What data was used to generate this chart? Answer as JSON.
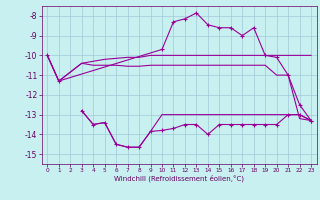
{
  "background_color": "#c8f0f0",
  "grid_color": "#a0c8d8",
  "line_color": "#990099",
  "tick_color": "#660066",
  "xlabel": "Windchill (Refroidissement éolien,°C)",
  "xlim": [
    -0.5,
    23.5
  ],
  "ylim": [
    -15.5,
    -7.5
  ],
  "yticks": [
    -15,
    -14,
    -13,
    -12,
    -11,
    -10,
    -9,
    -8
  ],
  "xticks": [
    0,
    1,
    2,
    3,
    4,
    5,
    6,
    7,
    8,
    9,
    10,
    11,
    12,
    13,
    14,
    15,
    16,
    17,
    18,
    19,
    20,
    21,
    22,
    23
  ],
  "series": [
    {
      "x": [
        0,
        1,
        3,
        4,
        5,
        6,
        7,
        8,
        9,
        10,
        11,
        12,
        13,
        14,
        15,
        16,
        17,
        18,
        19,
        20,
        21,
        22,
        23
      ],
      "y": [
        -10.0,
        -11.3,
        -10.4,
        -10.3,
        -10.2,
        -10.15,
        -10.1,
        -10.1,
        -10.0,
        -10.0,
        -10.0,
        -10.0,
        -10.0,
        -10.0,
        -10.0,
        -10.0,
        -10.0,
        -10.0,
        -10.0,
        -10.0,
        -10.0,
        -10.0,
        -10.0
      ],
      "marker": false
    },
    {
      "x": [
        0,
        1,
        3,
        4,
        5,
        6,
        7,
        8,
        9,
        10,
        11,
        12,
        13,
        14,
        15,
        16,
        17,
        18,
        19,
        20,
        21,
        22,
        23
      ],
      "y": [
        -10.0,
        -11.3,
        -10.4,
        -10.5,
        -10.5,
        -10.5,
        -10.55,
        -10.55,
        -10.5,
        -10.5,
        -10.5,
        -10.5,
        -10.5,
        -10.5,
        -10.5,
        -10.5,
        -10.5,
        -10.5,
        -10.5,
        -11.0,
        -11.0,
        -13.2,
        -13.3
      ],
      "marker": false
    },
    {
      "x": [
        0,
        1,
        10,
        11,
        12,
        13,
        14,
        15,
        16,
        17,
        18,
        19,
        20,
        21,
        22,
        23
      ],
      "y": [
        -10.0,
        -11.3,
        -9.7,
        -8.3,
        -8.15,
        -7.85,
        -8.45,
        -8.6,
        -8.6,
        -9.0,
        -8.6,
        -10.0,
        -10.1,
        -11.0,
        -12.5,
        -13.3
      ],
      "marker": true
    },
    {
      "x": [
        3,
        4,
        5,
        6,
        7,
        8,
        9,
        10,
        11,
        12,
        13,
        14,
        15,
        16,
        17,
        18,
        19,
        20,
        21,
        22,
        23
      ],
      "y": [
        -12.8,
        -13.5,
        -13.4,
        -14.5,
        -14.65,
        -14.65,
        -13.85,
        -13.0,
        -13.0,
        -13.0,
        -13.0,
        -13.0,
        -13.0,
        -13.0,
        -13.0,
        -13.0,
        -13.0,
        -13.0,
        -13.0,
        -13.0,
        -13.3
      ],
      "marker": false
    },
    {
      "x": [
        3,
        4,
        5,
        6,
        7,
        8,
        9,
        10,
        11,
        12,
        13,
        14,
        15,
        16,
        17,
        18,
        19,
        20,
        21,
        22,
        23
      ],
      "y": [
        -12.8,
        -13.5,
        -13.4,
        -14.5,
        -14.65,
        -14.65,
        -13.85,
        -13.8,
        -13.7,
        -13.5,
        -13.5,
        -14.0,
        -13.5,
        -13.5,
        -13.5,
        -13.5,
        -13.5,
        -13.5,
        -13.0,
        -13.0,
        -13.3
      ],
      "marker": true
    }
  ]
}
